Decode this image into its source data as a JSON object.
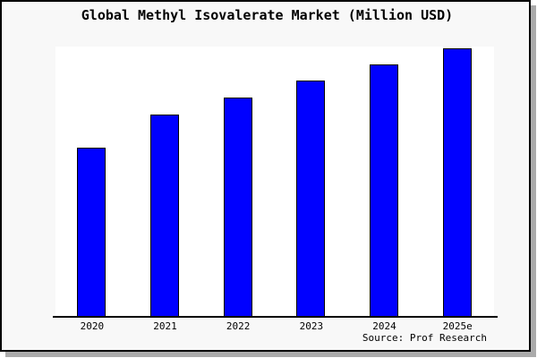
{
  "window": {
    "background": "#f8f8f8",
    "border_color": "#000000",
    "shadow_color": "#aaaaaa"
  },
  "chart_data": {
    "type": "bar",
    "title": "Global Methyl Isovalerate Market (Million USD)",
    "categories": [
      "2020",
      "2021",
      "2022",
      "2023",
      "2024",
      "2025e"
    ],
    "values": [
      62.8,
      75.4,
      81.7,
      88.0,
      94.0,
      100.0
    ],
    "value_note": "y-axis has no tick labels or gridlines; values are relative bar heights as percent of the tallest (2025e) bar",
    "ylim": [
      0,
      100
    ],
    "xlabel": "",
    "ylabel": "",
    "grid": false,
    "legend": "none",
    "bar_color": "#0000ff",
    "bar_border_color": "#000000",
    "plot_background": "#ffffff"
  },
  "footer": {
    "source": "Source: Prof Research"
  }
}
